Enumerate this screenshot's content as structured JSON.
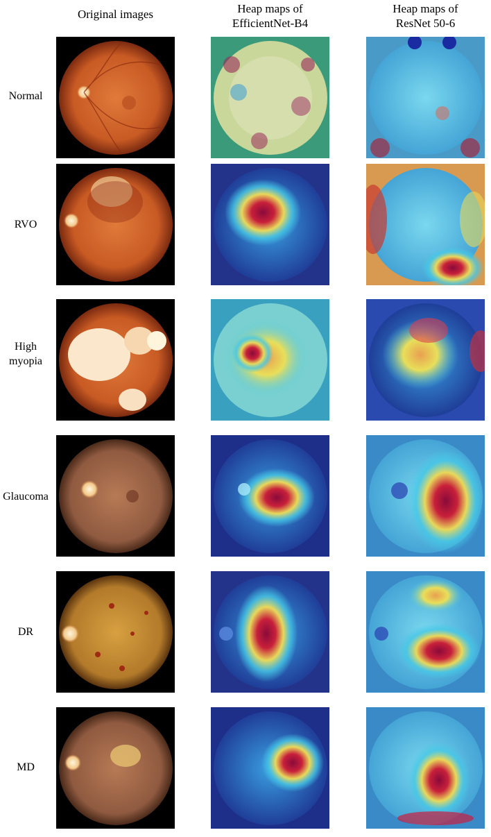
{
  "headers": {
    "col1": "Original images",
    "col2_line1": "Heap maps of",
    "col2_line2": "EfficientNet-B4",
    "col3_line1": "Heap maps of",
    "col3_line2": "ResNet 50-6"
  },
  "rows": [
    {
      "label": "Normal"
    },
    {
      "label": "RVO"
    },
    {
      "label_line1": "High",
      "label_line2": "myopia"
    },
    {
      "label": "Glaucoma"
    },
    {
      "label": "DR"
    },
    {
      "label": "MD"
    }
  ],
  "colors": {
    "fundus_orange": "#d7692d",
    "fundus_dark": "#7a2a10",
    "heat_blue": "#2a3fb0",
    "heat_cyan": "#46c8e6",
    "heat_yellow": "#e8df5a",
    "heat_red": "#b0153a"
  }
}
